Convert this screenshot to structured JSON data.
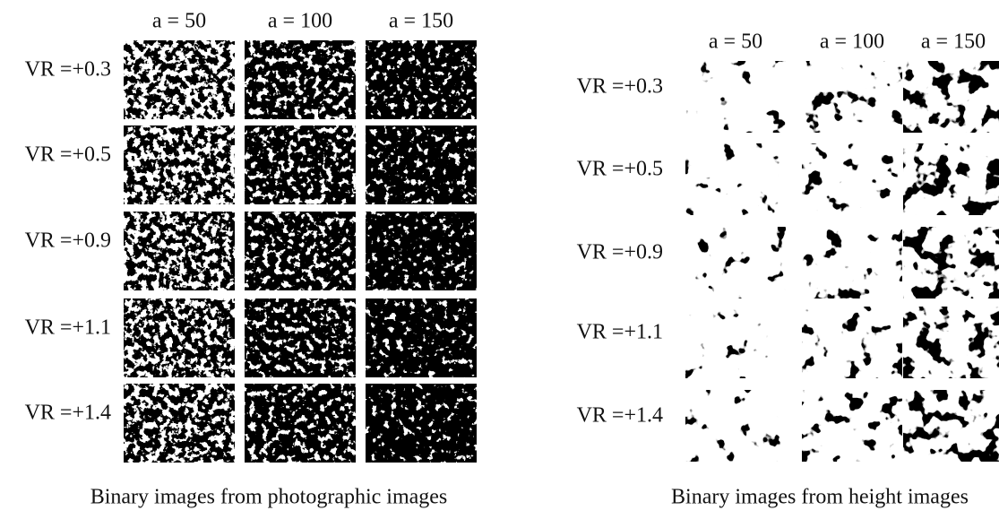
{
  "left_panel": {
    "columns": [
      "a = 50",
      "a = 100",
      "a = 150"
    ],
    "rows": [
      "VR =+0.3",
      "VR =+0.5",
      "VR =+0.9",
      "VR =+1.1",
      "VR =+1.4"
    ],
    "caption": "Binary images from photographic images"
  },
  "right_panel": {
    "columns": [
      "a = 50",
      "a = 100",
      "a = 150"
    ],
    "rows": [
      "VR =+0.3",
      "VR =+0.5",
      "VR =+0.9",
      "VR =+1.1",
      "VR =+1.4"
    ],
    "caption": "Binary images from height images"
  }
}
